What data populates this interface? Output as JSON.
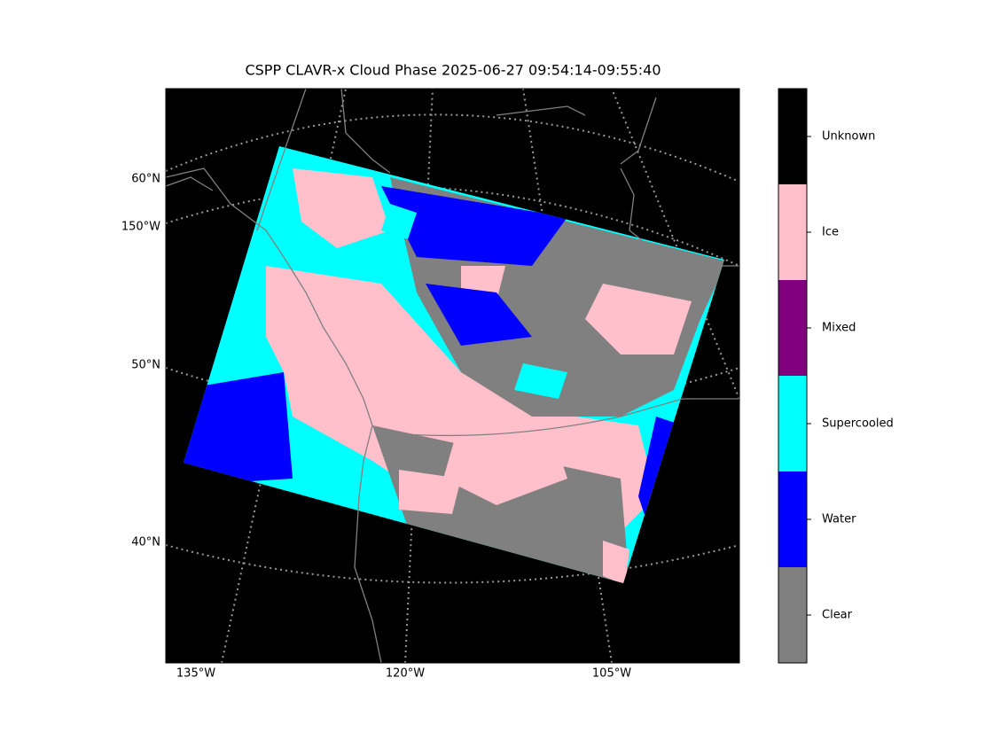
{
  "title": "CSPP CLAVR-x Cloud Phase 2025-06-27 09:54:14-09:55:40",
  "map": {
    "lat_labels": [
      "60°N",
      "150°W",
      "50°N",
      "40°N"
    ],
    "lon_labels": [
      "135°W",
      "120°W",
      "105°W"
    ]
  },
  "colorbar": {
    "classes": [
      {
        "label": "Clear",
        "color": "#808080"
      },
      {
        "label": "Water",
        "color": "#0000ff"
      },
      {
        "label": "Supercooled",
        "color": "#00ffff"
      },
      {
        "label": "Mixed",
        "color": "#800080"
      },
      {
        "label": "Ice",
        "color": "#ffc0cb"
      },
      {
        "label": "Unknown",
        "color": "#000000"
      }
    ]
  }
}
